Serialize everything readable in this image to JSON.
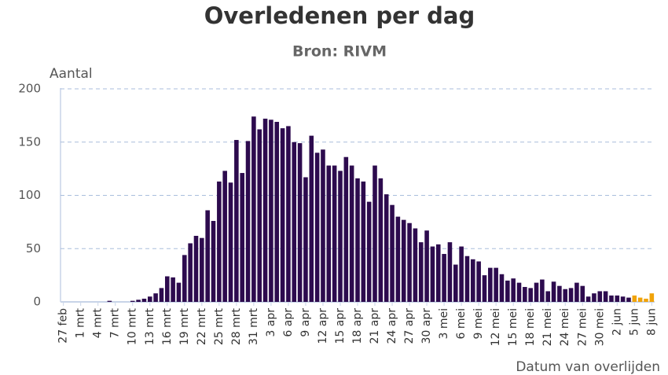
{
  "chart_data": {
    "type": "bar",
    "title": "Overledenen per dag",
    "subtitle": "Bron: RIVM",
    "y_label": "Aantal",
    "x_label": "Datum van overlijden",
    "categories": [
      "27 feb",
      null,
      null,
      "1 mrt",
      null,
      null,
      "4 mrt",
      null,
      null,
      "7 mrt",
      null,
      null,
      "10 mrt",
      null,
      null,
      "13 mrt",
      null,
      null,
      "16 mrt",
      null,
      null,
      "19 mrt",
      null,
      null,
      "22 mrt",
      null,
      null,
      "25 mrt",
      null,
      null,
      "28 mrt",
      null,
      null,
      "31 mrt",
      null,
      null,
      "3 apr",
      null,
      null,
      "6 apr",
      null,
      null,
      "9 apr",
      null,
      null,
      "12 apr",
      null,
      null,
      "15 apr",
      null,
      null,
      "18 apr",
      null,
      null,
      "21 apr",
      null,
      null,
      "24 apr",
      null,
      null,
      "27 apr",
      null,
      null,
      "30 apr",
      null,
      null,
      "3 mei",
      null,
      null,
      "6 mei",
      null,
      null,
      "9 mei",
      null,
      null,
      "12 mei",
      null,
      null,
      "15 mei",
      null,
      null,
      "18 mei",
      null,
      null,
      "21 mei",
      null,
      null,
      "24 mei",
      null,
      null,
      "27 mei",
      null,
      null,
      "30 mei",
      null,
      null,
      "2 jun",
      null,
      null,
      "5 jun",
      null,
      null,
      "8 jun"
    ],
    "values": [
      0,
      0,
      0,
      0,
      0,
      0,
      0,
      0,
      1,
      0,
      0,
      0,
      1,
      2,
      3,
      5,
      8,
      13,
      24,
      23,
      18,
      44,
      55,
      62,
      60,
      86,
      76,
      113,
      123,
      112,
      152,
      121,
      151,
      174,
      162,
      172,
      171,
      169,
      163,
      165,
      150,
      149,
      117,
      156,
      140,
      143,
      128,
      128,
      123,
      136,
      128,
      116,
      113,
      94,
      128,
      116,
      101,
      91,
      80,
      77,
      74,
      69,
      56,
      67,
      52,
      54,
      45,
      56,
      35,
      52,
      43,
      40,
      38,
      25,
      32,
      32,
      26,
      20,
      22,
      18,
      14,
      13,
      18,
      21,
      10,
      19,
      15,
      12,
      13,
      18,
      15,
      5,
      8,
      10,
      10,
      6,
      6,
      5,
      4,
      6,
      4,
      3,
      8
    ],
    "colors": [
      "#2d0b4e",
      "#2d0b4e",
      "#2d0b4e",
      "#2d0b4e",
      "#2d0b4e",
      "#2d0b4e",
      "#2d0b4e",
      "#2d0b4e",
      "#2d0b4e",
      "#2d0b4e",
      "#2d0b4e",
      "#2d0b4e",
      "#2d0b4e",
      "#2d0b4e",
      "#2d0b4e",
      "#2d0b4e",
      "#2d0b4e",
      "#2d0b4e",
      "#2d0b4e",
      "#2d0b4e",
      "#2d0b4e",
      "#2d0b4e",
      "#2d0b4e",
      "#2d0b4e",
      "#2d0b4e",
      "#2d0b4e",
      "#2d0b4e",
      "#2d0b4e",
      "#2d0b4e",
      "#2d0b4e",
      "#2d0b4e",
      "#2d0b4e",
      "#2d0b4e",
      "#2d0b4e",
      "#2d0b4e",
      "#2d0b4e",
      "#2d0b4e",
      "#2d0b4e",
      "#2d0b4e",
      "#2d0b4e",
      "#2d0b4e",
      "#2d0b4e",
      "#2d0b4e",
      "#2d0b4e",
      "#2d0b4e",
      "#2d0b4e",
      "#2d0b4e",
      "#2d0b4e",
      "#2d0b4e",
      "#2d0b4e",
      "#2d0b4e",
      "#2d0b4e",
      "#2d0b4e",
      "#2d0b4e",
      "#2d0b4e",
      "#2d0b4e",
      "#2d0b4e",
      "#2d0b4e",
      "#2d0b4e",
      "#2d0b4e",
      "#2d0b4e",
      "#2d0b4e",
      "#2d0b4e",
      "#2d0b4e",
      "#2d0b4e",
      "#2d0b4e",
      "#2d0b4e",
      "#2d0b4e",
      "#2d0b4e",
      "#2d0b4e",
      "#2d0b4e",
      "#2d0b4e",
      "#2d0b4e",
      "#2d0b4e",
      "#2d0b4e",
      "#2d0b4e",
      "#2d0b4e",
      "#2d0b4e",
      "#2d0b4e",
      "#2d0b4e",
      "#2d0b4e",
      "#2d0b4e",
      "#2d0b4e",
      "#2d0b4e",
      "#2d0b4e",
      "#2d0b4e",
      "#2d0b4e",
      "#2d0b4e",
      "#2d0b4e",
      "#2d0b4e",
      "#2d0b4e",
      "#2d0b4e",
      "#2d0b4e",
      "#2d0b4e",
      "#2d0b4e",
      "#2d0b4e",
      "#2d0b4e",
      "#2d0b4e",
      "#2d0b4e",
      "#f0a30a",
      "#f0a30a",
      "#f0a30a",
      "#f0a30a"
    ],
    "ylim": [
      0,
      200
    ],
    "yticks": [
      0,
      50,
      100,
      150,
      200
    ],
    "grid": true
  }
}
